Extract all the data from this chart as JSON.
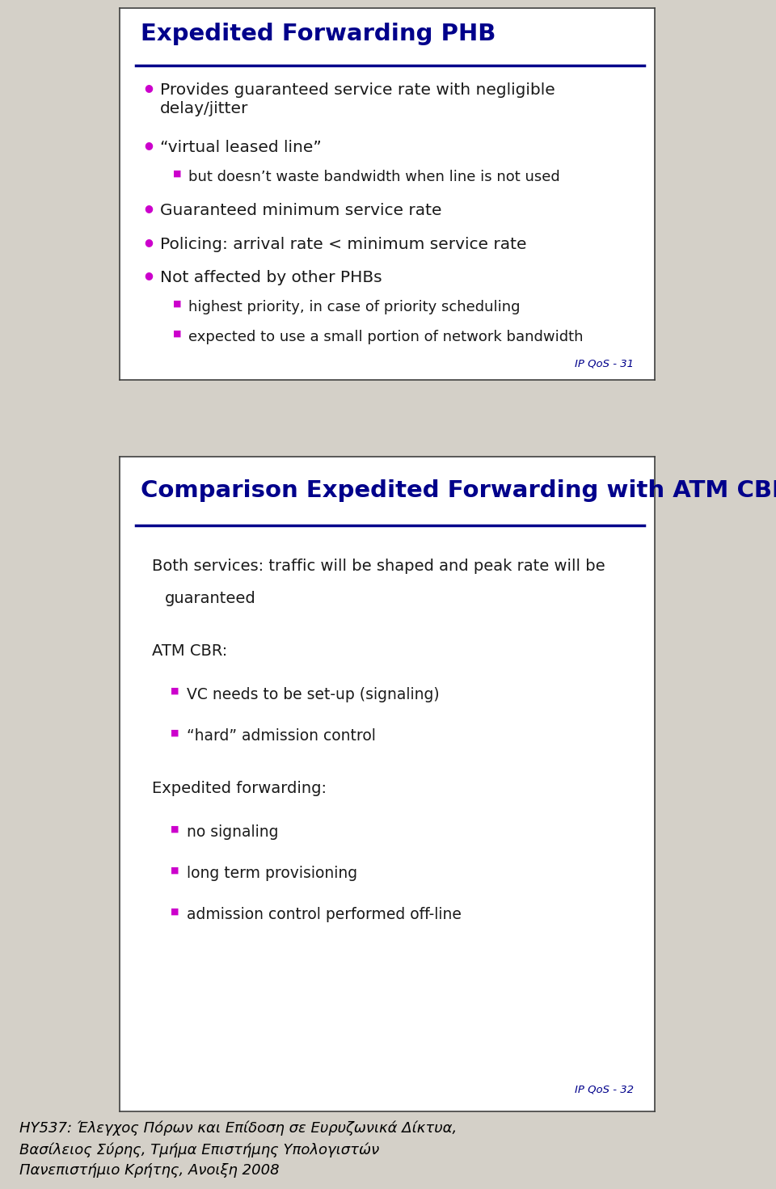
{
  "bg_color": "#d4d0c8",
  "fig_width": 9.6,
  "fig_height": 14.71,
  "slide1": {
    "title": "Expedited Forwarding PHB",
    "title_color": "#00008B",
    "title_underline_color": "#00008B",
    "slide_bg": "#ffffff",
    "slide_border": "#404040",
    "page_label": "IP QoS - 31",
    "page_label_color": "#00008B",
    "bullet_color": "#CC00CC",
    "bullets": [
      {
        "level": 1,
        "text": "Provides guaranteed service rate with negligible\ndelay/jitter"
      },
      {
        "level": 1,
        "text": "“virtual leased line”"
      },
      {
        "level": 2,
        "text": "but doesn’t waste bandwidth when line is not used"
      },
      {
        "level": 1,
        "text": "Guaranteed minimum service rate"
      },
      {
        "level": 1,
        "text": "Policing: arrival rate < minimum service rate"
      },
      {
        "level": 1,
        "text": "Not affected by other PHBs"
      },
      {
        "level": 2,
        "text": "highest priority, in case of priority scheduling"
      },
      {
        "level": 2,
        "text": "expected to use a small portion of network bandwidth"
      }
    ]
  },
  "slide2": {
    "title": "Comparison Expedited Forwarding with ATM CBR",
    "title_color": "#00008B",
    "title_underline_color": "#00008B",
    "slide_bg": "#ffffff",
    "slide_border": "#404040",
    "page_label": "IP QoS - 32",
    "page_label_color": "#00008B",
    "bullet_color": "#CC00CC",
    "intro_line1": "Both services: traffic will be shaped and peak rate will be",
    "intro_line2": "    guaranteed",
    "sections": [
      {
        "heading": "ATM CBR:",
        "items": [
          "VC needs to be set-up (signaling)",
          "“hard” admission control"
        ]
      },
      {
        "heading": "Expedited forwarding:",
        "items": [
          "no signaling",
          "long term provisioning",
          "admission control performed off-line"
        ]
      }
    ]
  },
  "footer": {
    "lines": [
      "HY537: Έλεγχος Πόρων και Επίδοση σε Ευρυζωνικά Δίκτυα,",
      "Βασίλειος Σύρης, Τμήμα Επιστήμης Υπολογιστών",
      "Πανεπιστήμιο Κρήτης, Ανοιξη 2008"
    ],
    "color": "#000000",
    "fontsize": 13
  }
}
